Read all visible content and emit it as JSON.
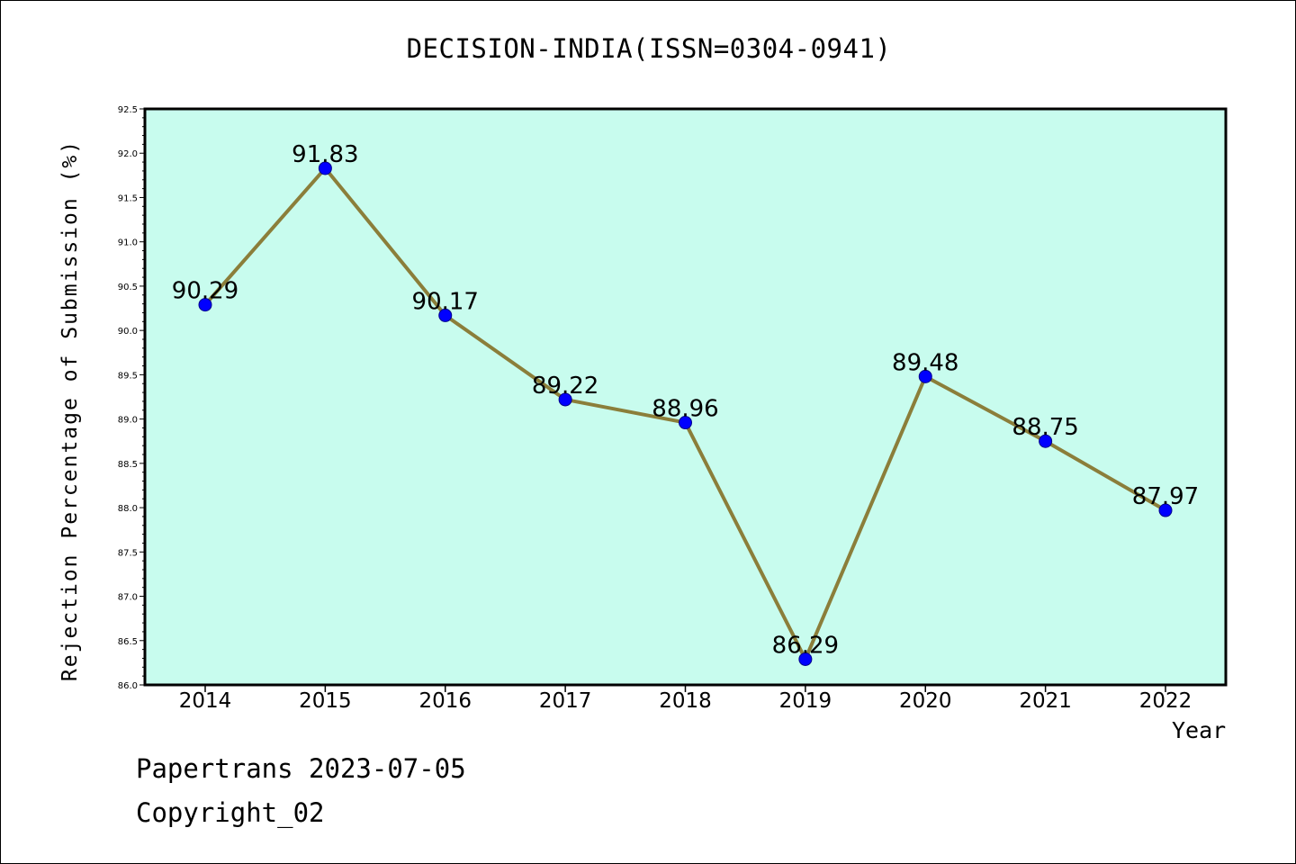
{
  "header": {
    "title": "DECISION-INDIA(ISSN=0304-0941)"
  },
  "footer": {
    "line1": "Papertrans 2023-07-05",
    "line2": "Copyright_02"
  },
  "chart_data": {
    "type": "line",
    "title": "DECISION-INDIA(ISSN=0304-0941)",
    "xlabel": "Year",
    "ylabel": "Rejection Percentage of Submission (%)",
    "x": [
      "2014",
      "2015",
      "2016",
      "2017",
      "2018",
      "2019",
      "2020",
      "2021",
      "2022"
    ],
    "series": [
      {
        "values": [
          90.29,
          91.83,
          90.17,
          89.22,
          88.96,
          86.29,
          89.48,
          88.75,
          87.97
        ]
      }
    ],
    "data_labels": [
      "90.29",
      "91.83",
      "90.17",
      "89.22",
      "88.96",
      "86.29",
      "89.48",
      "88.75",
      "87.97"
    ],
    "ylim": [
      86.0,
      92.5
    ],
    "yticks": [
      "86.0",
      "86.5",
      "87.0",
      "87.5",
      "88.0",
      "88.5",
      "89.0",
      "89.5",
      "90.0",
      "90.5",
      "91.0",
      "91.5",
      "92.0",
      "92.5"
    ],
    "grid": false,
    "legend": "none",
    "colors": {
      "plot_background": "#c8fcee",
      "line": "#8b7e3a",
      "marker": "#0000ff",
      "axis": "#000000"
    }
  }
}
